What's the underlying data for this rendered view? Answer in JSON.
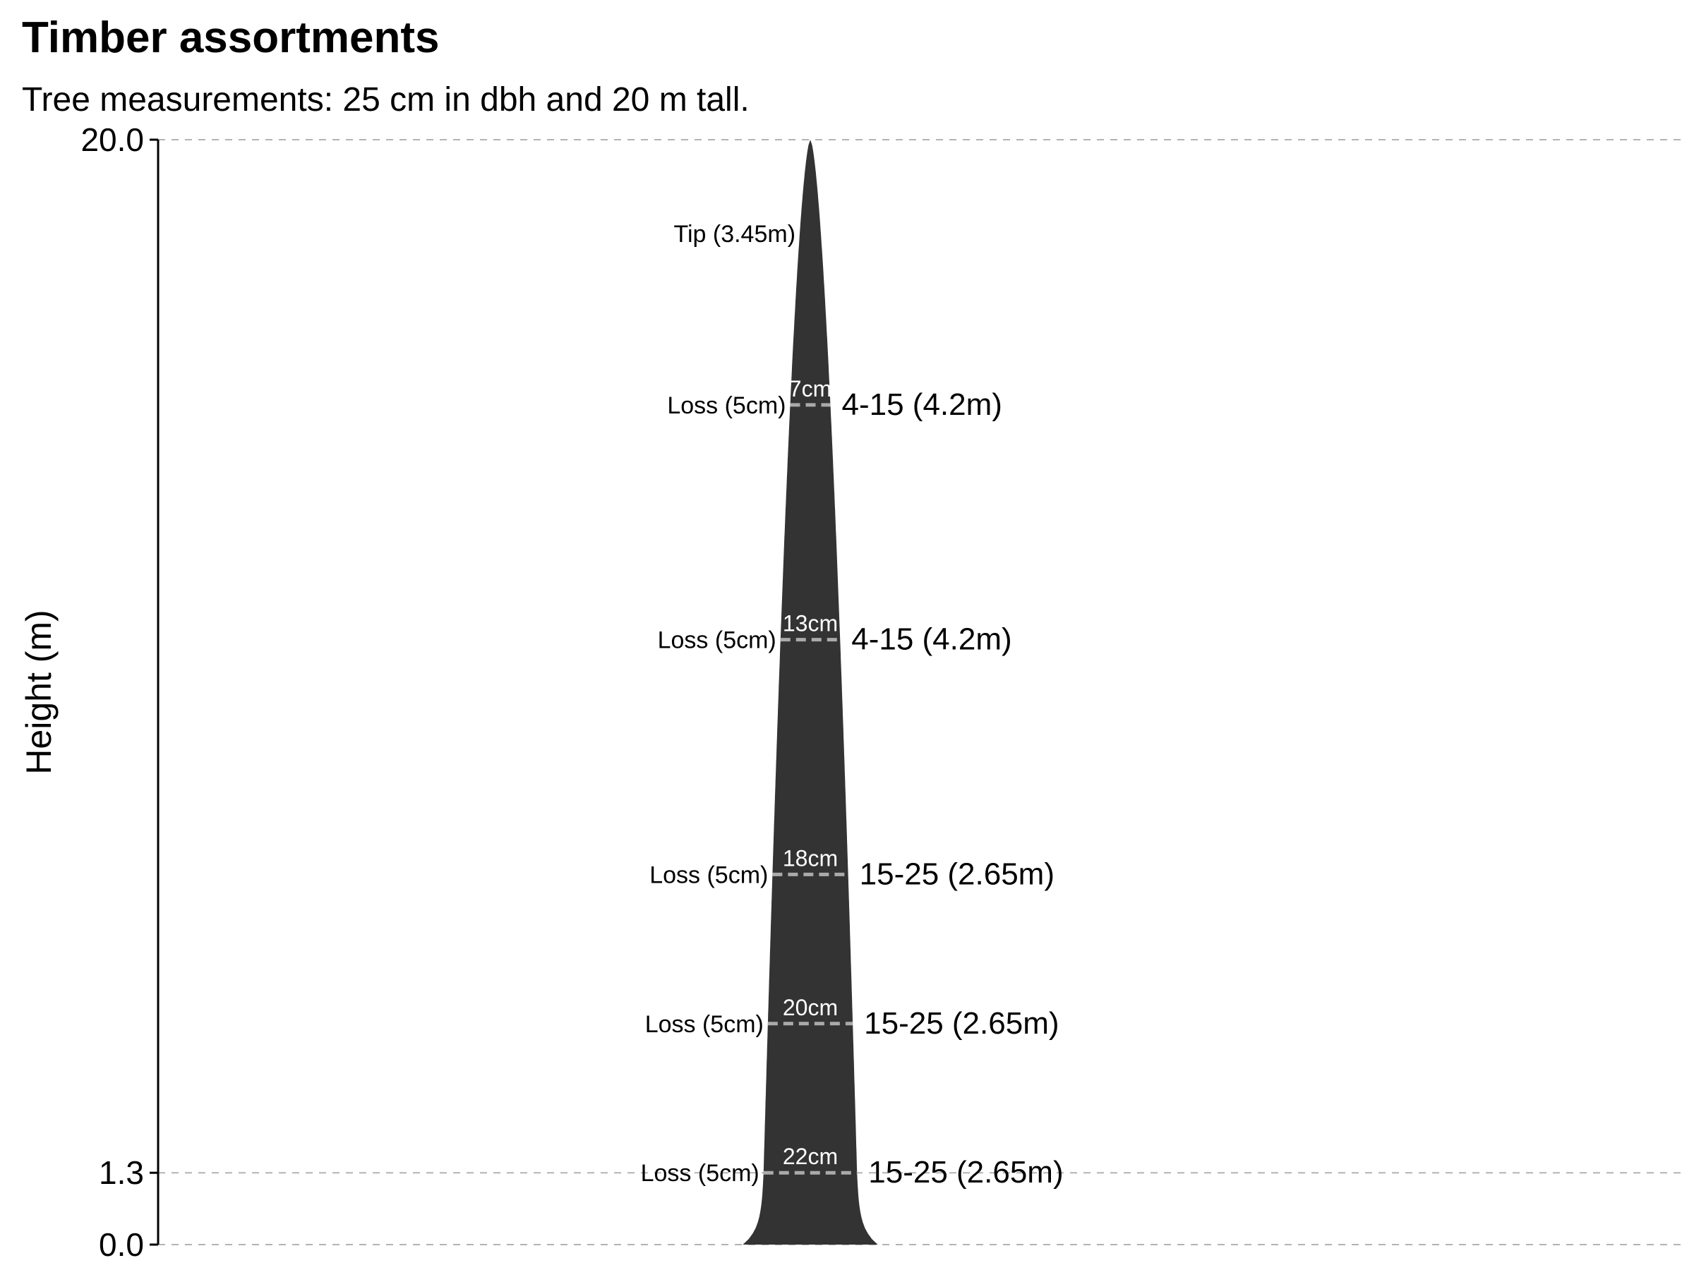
{
  "chart_data": {
    "type": "area",
    "title": "Timber assortments",
    "subtitle": "Tree measurements: 25 cm in dbh and 20 m tall.",
    "ylabel": "Height (m)",
    "ylim": [
      0,
      20
    ],
    "yticks": [
      {
        "value": 0,
        "label": "0.0"
      },
      {
        "value": 1.3,
        "label": "1.3"
      },
      {
        "value": 20,
        "label": "20.0"
      }
    ],
    "grid": "horizontal dashed at tick values",
    "tree": {
      "dbh_cm": 25,
      "height_m": 20,
      "base_diameter_cm": 35
    },
    "cut_lines": [
      {
        "height_m": 1.3,
        "diameter_label": "22cm",
        "loss_label": "Loss (5cm)"
      },
      {
        "height_m": 4.0,
        "diameter_label": "20cm",
        "loss_label": "Loss (5cm)"
      },
      {
        "height_m": 6.7,
        "diameter_label": "18cm",
        "loss_label": "Loss (5cm)"
      },
      {
        "height_m": 10.95,
        "diameter_label": "13cm",
        "loss_label": "Loss (5cm)"
      },
      {
        "height_m": 15.2,
        "diameter_label": "7cm",
        "loss_label": "Loss (5cm)"
      }
    ],
    "segments": [
      {
        "label": "15-25 (2.65m)",
        "height_m": 1.3
      },
      {
        "label": "15-25 (2.65m)",
        "height_m": 4.0
      },
      {
        "label": "15-25 (2.65m)",
        "height_m": 6.7
      },
      {
        "label": "4-15 (4.2m)",
        "height_m": 10.95
      },
      {
        "label": "4-15 (4.2m)",
        "height_m": 15.2
      }
    ],
    "tip": {
      "label": "Tip (3.45m)",
      "height_m": 18.3
    },
    "colors": {
      "stem": "#333333",
      "cut_line": "#aaaaaa",
      "grid": "#b3b3b3",
      "axis": "#000000"
    }
  }
}
